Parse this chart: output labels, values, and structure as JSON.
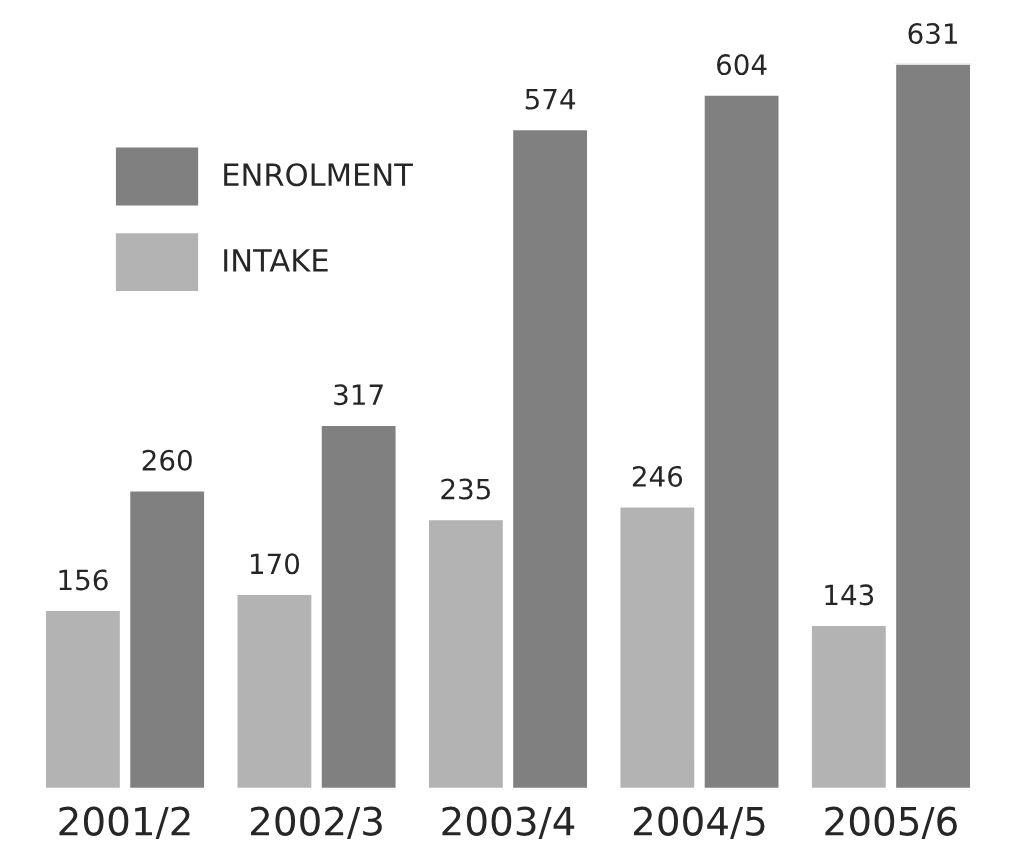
{
  "chart_data": {
    "type": "bar",
    "categories": [
      "2001/2",
      "2002/3",
      "2003/4",
      "2004/5",
      "2005/6"
    ],
    "series": [
      {
        "name": "INTAKE",
        "color": "#b3b3b3",
        "values": [
          156,
          170,
          235,
          246,
          143
        ]
      },
      {
        "name": "ENROLMENT",
        "color": "#808080",
        "values": [
          260,
          317,
          574,
          604,
          631
        ]
      }
    ],
    "data_labels": true,
    "legend": "top left",
    "grid": false
  }
}
